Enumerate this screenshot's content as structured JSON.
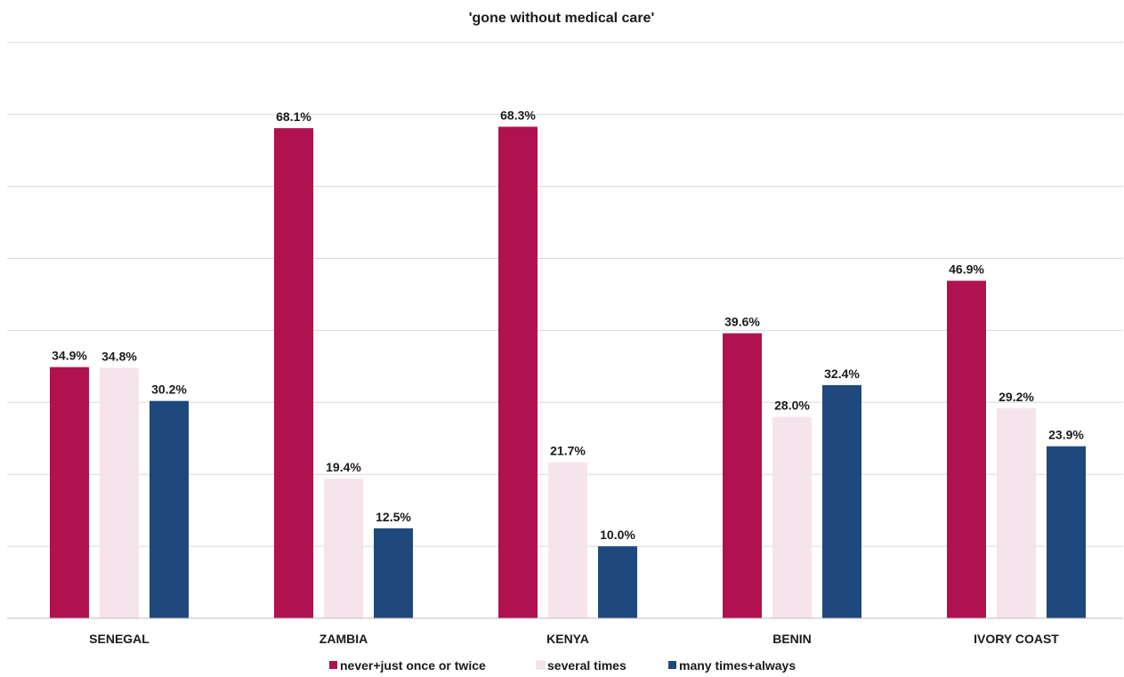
{
  "chart_data": {
    "type": "bar",
    "title": "'gone without medical care'",
    "categories": [
      "SENEGAL",
      "ZAMBIA",
      "KENYA",
      "BENIN",
      "IVORY COAST"
    ],
    "series": [
      {
        "name": "never+just once or twice",
        "color": "#b01250",
        "values": [
          34.9,
          68.1,
          68.3,
          39.6,
          46.9
        ],
        "labels": [
          "34.9%",
          "68.1%",
          "68.3%",
          "39.6%",
          "46.9%"
        ]
      },
      {
        "name": "several times",
        "color": "#f6e4ec",
        "values": [
          34.8,
          19.4,
          21.7,
          28.0,
          29.2
        ],
        "labels": [
          "34.8%",
          "19.4%",
          "21.7%",
          "28.0%",
          "29.2%"
        ]
      },
      {
        "name": "many times+always",
        "color": "#1f497d",
        "values": [
          30.2,
          12.5,
          10.0,
          32.4,
          23.9
        ],
        "labels": [
          "30.2%",
          "12.5%",
          "10.0%",
          "32.4%",
          "23.9%"
        ]
      }
    ],
    "ylim": [
      0,
      80
    ],
    "gridlines": [
      10,
      20,
      30,
      40,
      50,
      60,
      70,
      80
    ],
    "grid": true,
    "y_axis_labels_visible": false,
    "legend_position": "bottom"
  }
}
